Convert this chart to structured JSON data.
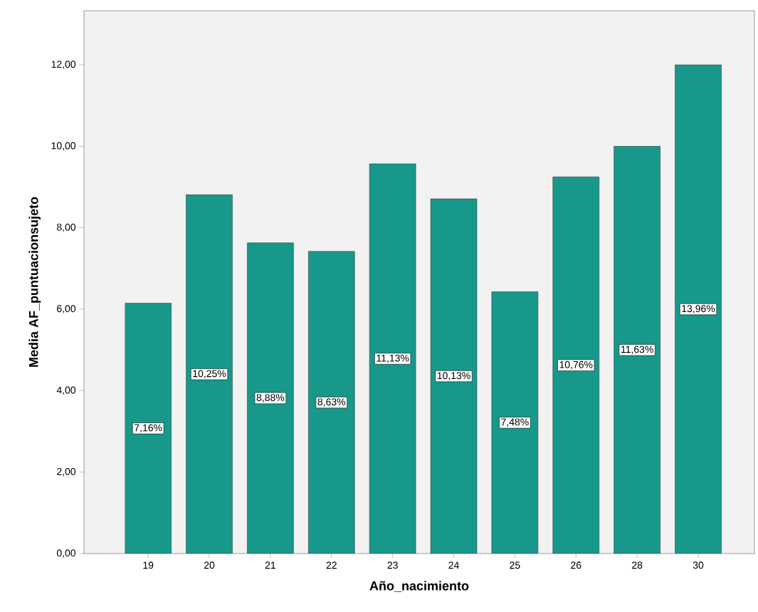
{
  "chart_data": {
    "type": "bar",
    "xlabel": "Año_nacimiento",
    "ylabel": "Media AF_puntuacionsujeto",
    "categories": [
      "19",
      "20",
      "21",
      "22",
      "23",
      "24",
      "25",
      "26",
      "28",
      "30"
    ],
    "values": [
      6.15,
      8.81,
      7.63,
      7.42,
      9.57,
      8.71,
      6.43,
      9.25,
      10.0,
      12.0
    ],
    "annotations": [
      "7,16%",
      "10,25%",
      "8,88%",
      "8,63%",
      "11,13%",
      "10,13%",
      "7,48%",
      "10,76%",
      "11,63%",
      "13,96%"
    ],
    "color": "#17988a",
    "ylim": [
      0,
      13.33
    ],
    "yticks": [
      {
        "value": 0,
        "label": "0,00"
      },
      {
        "value": 2,
        "label": "2,00"
      },
      {
        "value": 4,
        "label": "4,00"
      },
      {
        "value": 6,
        "label": "6,00"
      },
      {
        "value": 8,
        "label": "8,00"
      },
      {
        "value": 10,
        "label": "10,00"
      },
      {
        "value": 12,
        "label": "12,00"
      }
    ]
  }
}
